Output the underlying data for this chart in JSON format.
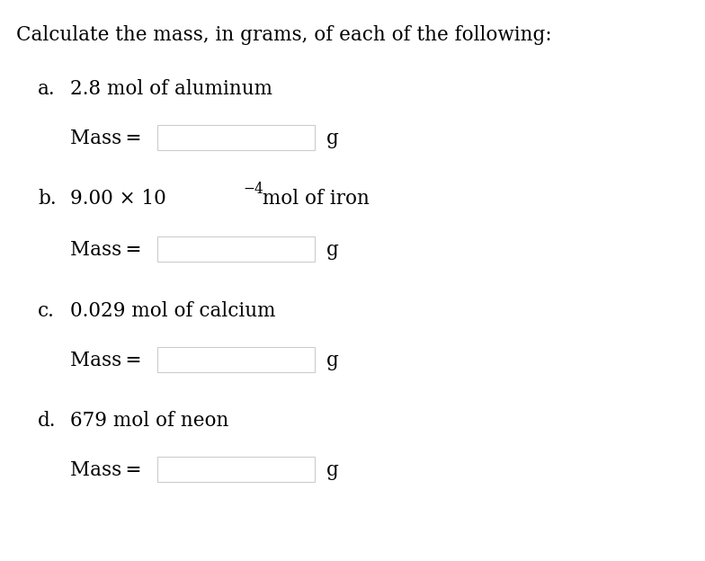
{
  "title": "Calculate the mass, in grams, of each of the following:",
  "background_color": "#ffffff",
  "text_color": "#000000",
  "title_fontsize": 15.5,
  "label_fontsize": 15.5,
  "items": [
    {
      "letter": "a.",
      "question": "2.8 mol of aluminum",
      "use_math": false
    },
    {
      "letter": "b.",
      "question_parts": [
        "9.00 × 10",
        "−4",
        " mol of iron"
      ],
      "use_math": true
    },
    {
      "letter": "c.",
      "question": "0.029 mol of calcium",
      "use_math": false
    },
    {
      "letter": "d.",
      "question": "679 mol of neon",
      "use_math": false
    }
  ],
  "box_edge_color": "#cccccc",
  "box_face_color": "#ffffff"
}
